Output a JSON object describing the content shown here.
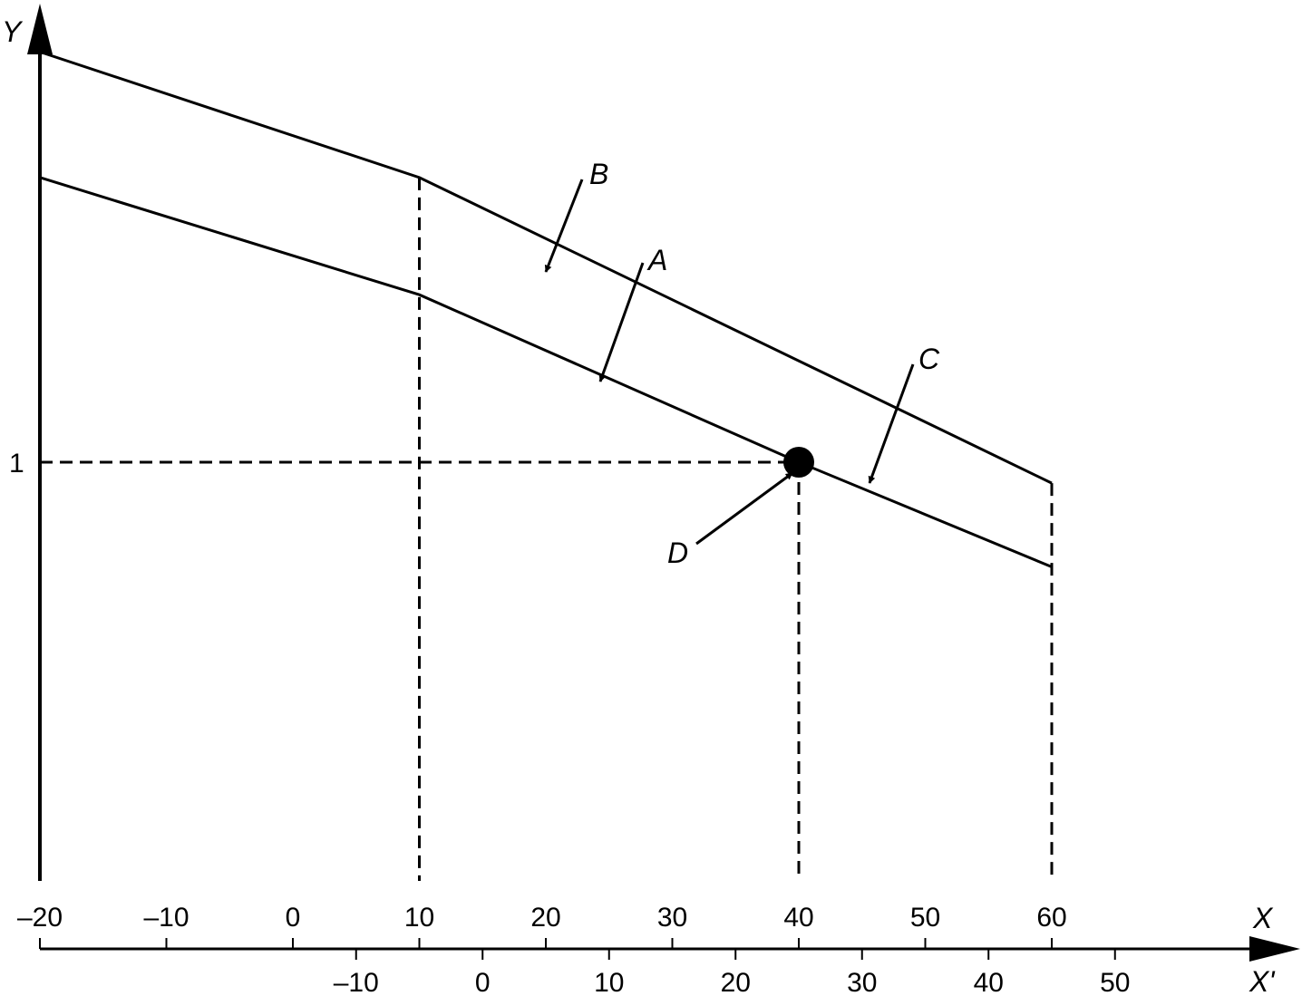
{
  "chart_data": {
    "type": "line",
    "title": "",
    "y_axis": {
      "label": "Y",
      "ticks": [
        {
          "value": 1,
          "label": "1"
        }
      ]
    },
    "x_axis": {
      "label": "X",
      "range": [
        -20,
        60
      ],
      "ticks": [
        "–20",
        "–10",
        "0",
        "10",
        "20",
        "30",
        "40",
        "50",
        "60"
      ]
    },
    "x_prime_axis": {
      "label": "X'",
      "ticks": [
        "–10",
        "0",
        "10",
        "20",
        "30",
        "40",
        "50"
      ]
    },
    "series": [
      {
        "name": "A",
        "x": [
          -20,
          10,
          40,
          60
        ],
        "y": [
          1.68,
          1.4,
          1.0,
          0.75
        ]
      },
      {
        "name": "B",
        "x": [
          -20,
          10,
          60
        ],
        "y": [
          1.98,
          1.68,
          0.95
        ]
      }
    ],
    "reference_lines": [
      {
        "type": "horizontal",
        "y": 1,
        "x_range": [
          -20,
          40
        ],
        "style": "dashed"
      },
      {
        "type": "vertical",
        "x": 10,
        "style": "dashed"
      },
      {
        "type": "vertical",
        "x": 40,
        "style": "dashed"
      },
      {
        "type": "vertical",
        "x": 60,
        "style": "dashed"
      }
    ],
    "points": [
      {
        "name": "D",
        "x": 40,
        "y": 1
      }
    ],
    "annotations": [
      {
        "text": "A",
        "target": "series A"
      },
      {
        "text": "B",
        "target": "series B"
      },
      {
        "text": "C",
        "target": "region between A and B"
      },
      {
        "text": "D",
        "target": "point (40, 1)"
      }
    ],
    "grid": false,
    "legend": "none"
  }
}
